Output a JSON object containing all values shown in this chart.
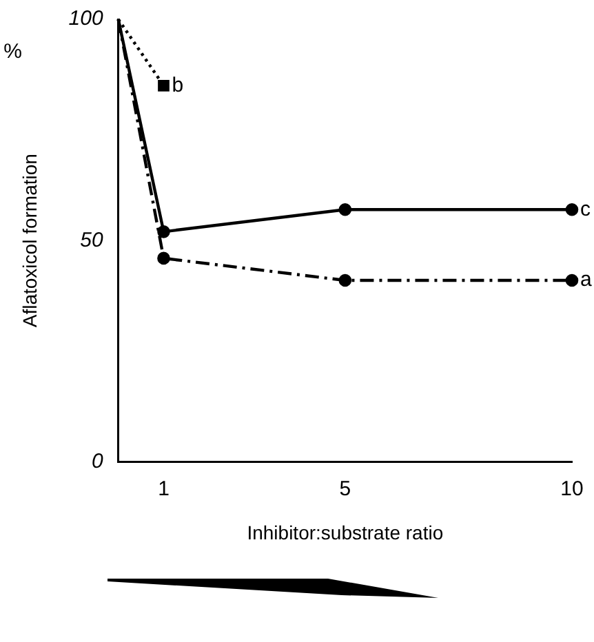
{
  "chart_data": {
    "type": "line",
    "xlabel": "Inhibitor:substrate ratio",
    "ylabel": "Aflatoxicol formation",
    "annotations": [
      "%"
    ],
    "xlim": [
      0,
      10
    ],
    "xticks": [
      1,
      5,
      10
    ],
    "ylim": [
      0,
      100
    ],
    "yticks": [
      0,
      50,
      100
    ],
    "grid": false,
    "legend": false,
    "series": [
      {
        "name": "b",
        "color": "#000000",
        "x": [
          0,
          1
        ],
        "values": [
          100,
          85
        ],
        "line_style": "dotted",
        "marker": "square"
      },
      {
        "name": "a",
        "color": "#000000",
        "x": [
          0,
          1,
          5,
          10
        ],
        "values": [
          100,
          46,
          41,
          41
        ],
        "line_style": "dashdot",
        "marker": "circle"
      },
      {
        "name": "c",
        "color": "#000000",
        "x": [
          0,
          1,
          5,
          10
        ],
        "values": [
          100,
          52,
          57,
          57
        ],
        "line_style": "solid",
        "marker": "circle"
      }
    ]
  }
}
